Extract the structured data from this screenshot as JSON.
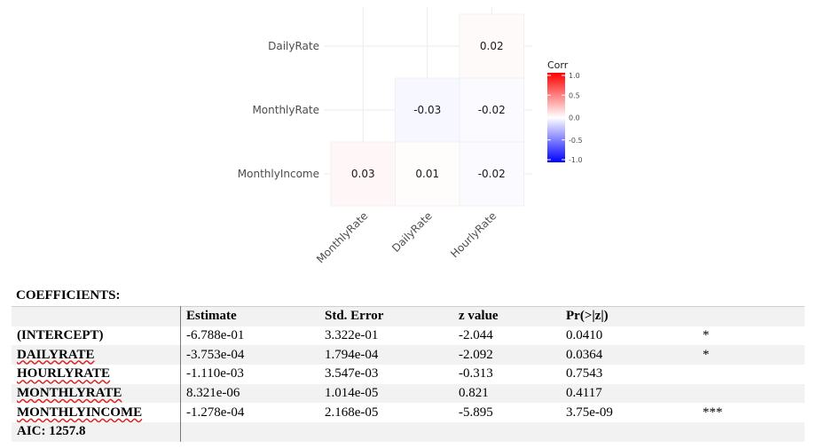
{
  "chart_data": {
    "type": "heatmap",
    "rows": [
      "DailyRate",
      "MonthlyRate",
      "MonthlyIncome"
    ],
    "columns": [
      "MonthlyRate",
      "DailyRate",
      "HourlyRate"
    ],
    "cells": [
      {
        "row": "DailyRate",
        "col": "HourlyRate",
        "value": 0.02,
        "label": "0.02"
      },
      {
        "row": "MonthlyRate",
        "col": "DailyRate",
        "value": -0.03,
        "label": "-0.03"
      },
      {
        "row": "MonthlyRate",
        "col": "HourlyRate",
        "value": -0.02,
        "label": "-0.02"
      },
      {
        "row": "MonthlyIncome",
        "col": "MonthlyRate",
        "value": 0.03,
        "label": "0.03"
      },
      {
        "row": "MonthlyIncome",
        "col": "DailyRate",
        "value": 0.01,
        "label": "0.01"
      },
      {
        "row": "MonthlyIncome",
        "col": "HourlyRate",
        "value": -0.02,
        "label": "-0.02"
      }
    ],
    "legend": {
      "title": "Corr",
      "range": [
        -1.0,
        1.0
      ],
      "ticks": [
        "1.0",
        "0.5",
        "0.0",
        "-0.5",
        "-1.0"
      ],
      "colors": {
        "low": "#0000ff",
        "mid": "#ffffff",
        "high": "#ff0000"
      }
    }
  },
  "coefficients": {
    "heading": "COEFFICIENTS:",
    "columns": [
      "",
      "Estimate",
      "Std. Error",
      "z value",
      "Pr(>|z|)",
      ""
    ],
    "rows": [
      {
        "name": "(INTERCEPT)",
        "estimate": "-6.788e-01",
        "std_error": "3.322e-01",
        "z_value": "-2.044",
        "p_value": "0.0410",
        "signif": "*"
      },
      {
        "name": "DAILYRATE",
        "estimate": "-3.753e-04",
        "std_error": "1.794e-04",
        "z_value": "-2.092",
        "p_value": "0.0364",
        "signif": "*"
      },
      {
        "name": "HOURLYRATE",
        "estimate": "-1.110e-03",
        "std_error": "3.547e-03",
        "z_value": "-0.313",
        "p_value": "0.7543",
        "signif": ""
      },
      {
        "name": "MONTHLYRATE",
        "estimate": "8.321e-06",
        "std_error": "1.014e-05",
        "z_value": "0.821",
        "p_value": "0.4117",
        "signif": ""
      },
      {
        "name": "MONTHLYINCOME",
        "estimate": "-1.278e-04",
        "std_error": "2.168e-05",
        "z_value": "-5.895",
        "p_value": "3.75e-09",
        "signif": "***"
      }
    ],
    "aic": "AIC: 1257.8"
  }
}
